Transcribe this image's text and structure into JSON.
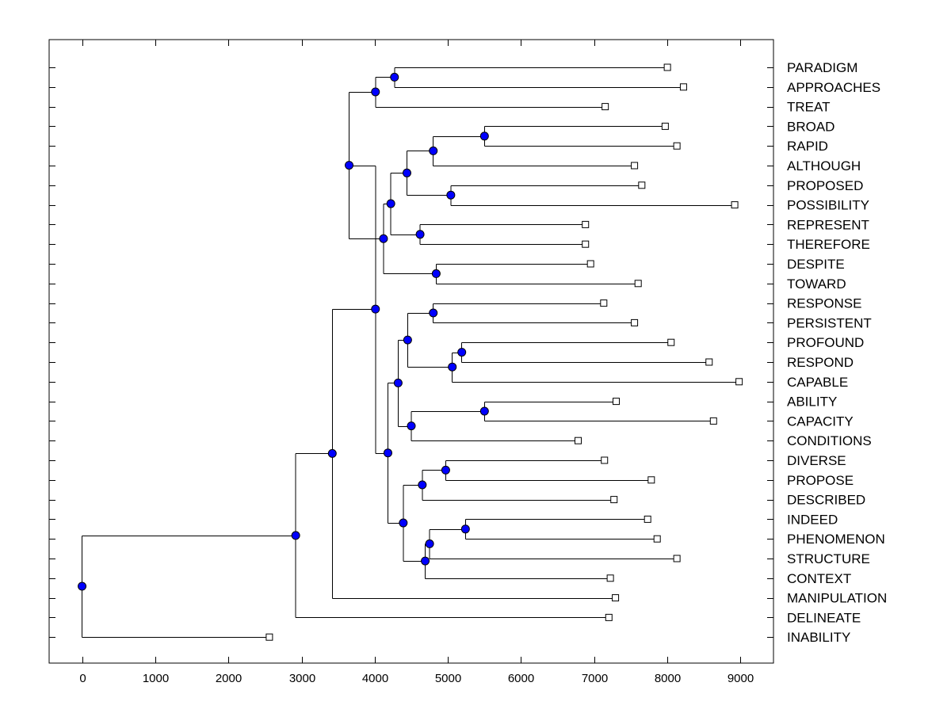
{
  "chart_data": {
    "type": "dendrogram",
    "title": "",
    "xlabel": "",
    "ylabel": "",
    "xlim": [
      -450,
      9450
    ],
    "x_ticks": [
      0,
      1000,
      2000,
      3000,
      4000,
      5000,
      6000,
      7000,
      8000,
      9000
    ],
    "colors": {
      "node": "#0000ff",
      "node_stroke": "#000000",
      "line": "#000000",
      "leaf_fill": "#ffffff"
    },
    "leaves": [
      {
        "label": "PARADIGM",
        "x": 8000
      },
      {
        "label": "APPROACHES",
        "x": 8220
      },
      {
        "label": "TREAT",
        "x": 7150
      },
      {
        "label": "BROAD",
        "x": 7970
      },
      {
        "label": "RAPID",
        "x": 8130
      },
      {
        "label": "ALTHOUGH",
        "x": 7550
      },
      {
        "label": "PROPOSED",
        "x": 7650
      },
      {
        "label": "POSSIBILITY",
        "x": 8920
      },
      {
        "label": "REPRESENT",
        "x": 6880
      },
      {
        "label": "THEREFORE",
        "x": 6880
      },
      {
        "label": "DESPITE",
        "x": 6950
      },
      {
        "label": "TOWARD",
        "x": 7600
      },
      {
        "label": "RESPONSE",
        "x": 7130
      },
      {
        "label": "PERSISTENT",
        "x": 7550
      },
      {
        "label": "PROFOUND",
        "x": 8050
      },
      {
        "label": "RESPOND",
        "x": 8570
      },
      {
        "label": "CAPABLE",
        "x": 8980
      },
      {
        "label": "ABILITY",
        "x": 7300
      },
      {
        "label": "CAPACITY",
        "x": 8630
      },
      {
        "label": "CONDITIONS",
        "x": 6780
      },
      {
        "label": "DIVERSE",
        "x": 7140
      },
      {
        "label": "PROPOSE",
        "x": 7780
      },
      {
        "label": "DESCRIBED",
        "x": 7270
      },
      {
        "label": "INDEED",
        "x": 7730
      },
      {
        "label": "PHENOMENON",
        "x": 7860
      },
      {
        "label": "STRUCTURE",
        "x": 8130
      },
      {
        "label": "CONTEXT",
        "x": 7220
      },
      {
        "label": "MANIPULATION",
        "x": 7290
      },
      {
        "label": "DELINEATE",
        "x": 7200
      },
      {
        "label": "INABILITY",
        "x": 2560
      }
    ],
    "merges": [
      {
        "id": "n1",
        "x": 4270,
        "children": [
          "L0",
          "L1"
        ]
      },
      {
        "id": "n2",
        "x": 4010,
        "children": [
          "n1",
          "L2"
        ]
      },
      {
        "id": "n3",
        "x": 5500,
        "children": [
          "L3",
          "L4"
        ]
      },
      {
        "id": "n4",
        "x": 4800,
        "children": [
          "n3",
          "L5"
        ]
      },
      {
        "id": "n5",
        "x": 5040,
        "children": [
          "L6",
          "L7"
        ]
      },
      {
        "id": "n6",
        "x": 4440,
        "children": [
          "n4",
          "n5"
        ]
      },
      {
        "id": "n7",
        "x": 4620,
        "children": [
          "L8",
          "L9"
        ]
      },
      {
        "id": "n8",
        "x": 4220,
        "children": [
          "n6",
          "n7"
        ]
      },
      {
        "id": "n9",
        "x": 4840,
        "children": [
          "L10",
          "L11"
        ]
      },
      {
        "id": "n10",
        "x": 4120,
        "children": [
          "n8",
          "n9"
        ]
      },
      {
        "id": "n11",
        "x": 3650,
        "children": [
          "n2",
          "n10"
        ]
      },
      {
        "id": "n12",
        "x": 4800,
        "children": [
          "L12",
          "L13"
        ]
      },
      {
        "id": "n13",
        "x": 5190,
        "children": [
          "L14",
          "L15"
        ]
      },
      {
        "id": "n14",
        "x": 5060,
        "children": [
          "n13",
          "L16"
        ]
      },
      {
        "id": "n15",
        "x": 4450,
        "children": [
          "n12",
          "n14"
        ]
      },
      {
        "id": "n16",
        "x": 5500,
        "children": [
          "L17",
          "L18"
        ]
      },
      {
        "id": "n17",
        "x": 4500,
        "children": [
          "n16",
          "L19"
        ]
      },
      {
        "id": "n18",
        "x": 4320,
        "children": [
          "n15",
          "n17"
        ]
      },
      {
        "id": "n19",
        "x": 4970,
        "children": [
          "L20",
          "L21"
        ]
      },
      {
        "id": "n20",
        "x": 4650,
        "children": [
          "n19",
          "L22"
        ]
      },
      {
        "id": "n21",
        "x": 5240,
        "children": [
          "L23",
          "L24"
        ]
      },
      {
        "id": "n22",
        "x": 4750,
        "children": [
          "n21",
          "L25"
        ]
      },
      {
        "id": "n23",
        "x": 4690,
        "children": [
          "n22",
          "L26"
        ]
      },
      {
        "id": "n24",
        "x": 4390,
        "children": [
          "n20",
          "n23"
        ]
      },
      {
        "id": "n25",
        "x": 4180,
        "children": [
          "n18",
          "n24"
        ]
      },
      {
        "id": "n26",
        "x": 4010,
        "children": [
          "n11",
          "n25"
        ]
      },
      {
        "id": "n27",
        "x": 3420,
        "children": [
          "n26",
          "L27"
        ]
      },
      {
        "id": "n28",
        "x": 2920,
        "children": [
          "n27",
          "L28"
        ]
      },
      {
        "id": "n29",
        "x": 0,
        "children": [
          "n28",
          "L29"
        ]
      }
    ]
  }
}
